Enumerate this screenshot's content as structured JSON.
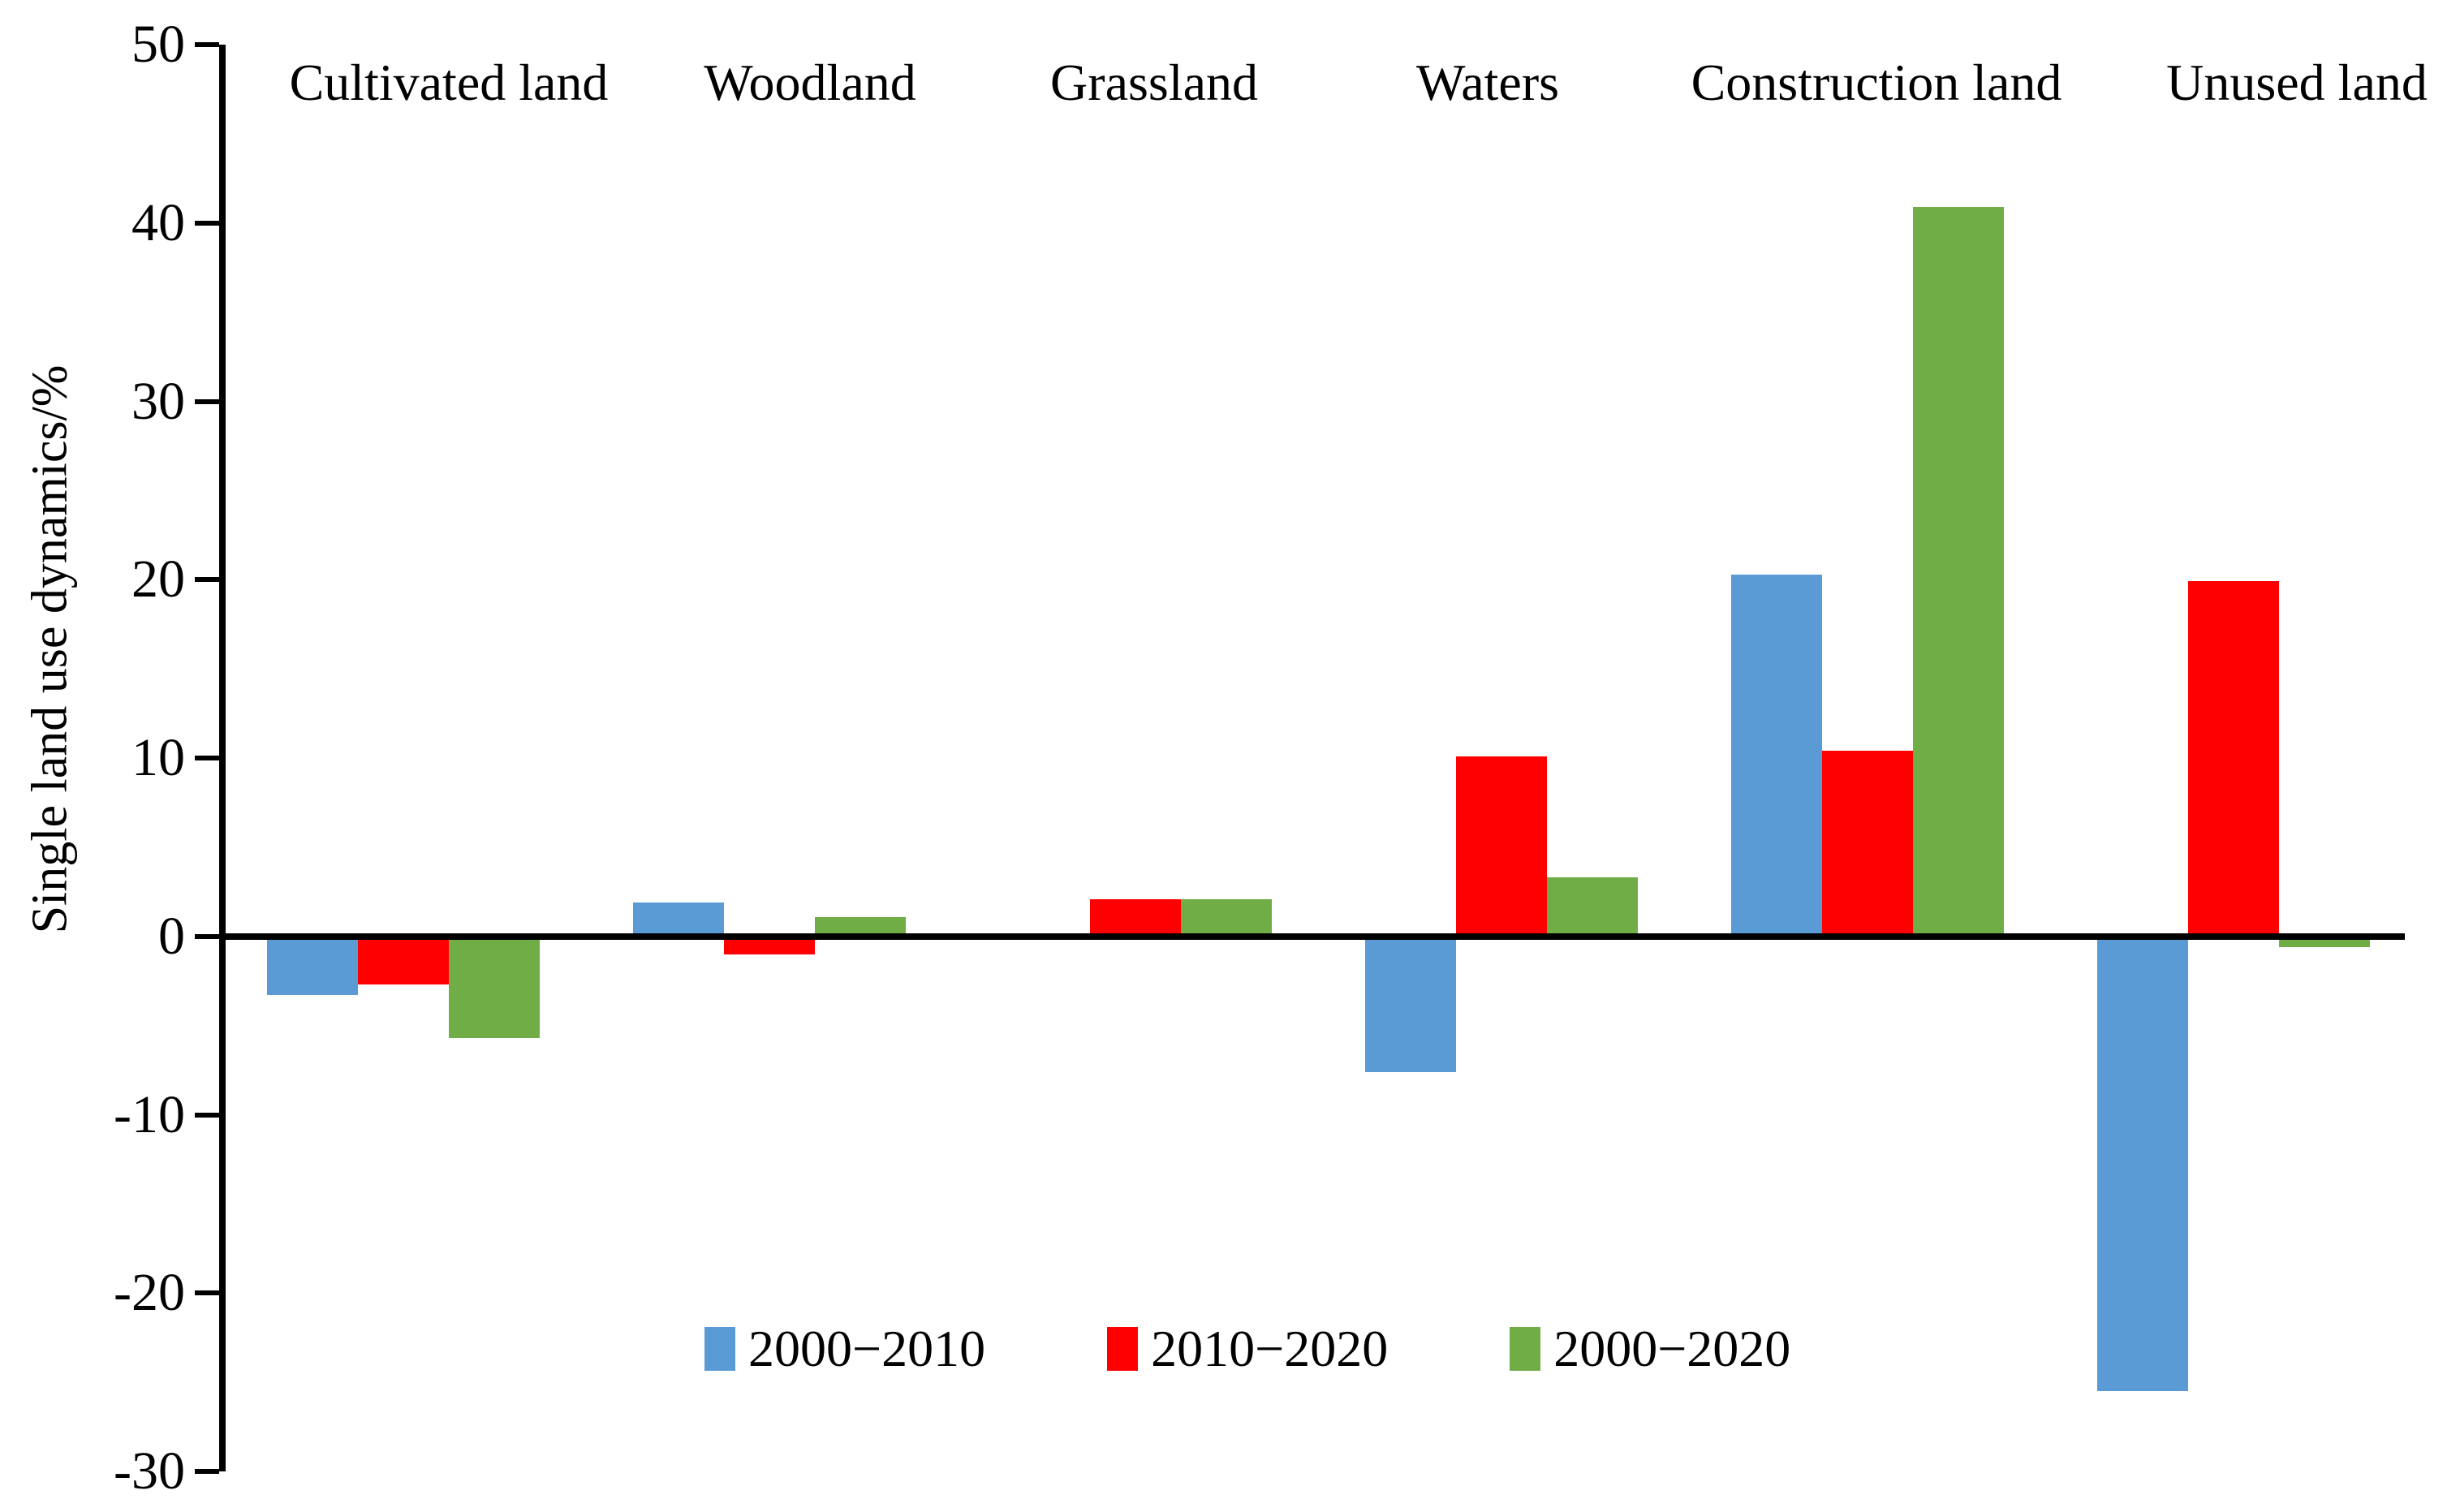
{
  "figure": {
    "background": "#ffffff",
    "axis_color": "#000000"
  },
  "chart_data": {
    "type": "bar",
    "title": "",
    "xlabel": "",
    "ylabel": "Single land use dynamics/%",
    "ylim": [
      -30,
      50
    ],
    "ytick_interval": 10,
    "yticks": [
      50,
      40,
      30,
      20,
      10,
      0,
      -10,
      -20,
      -30
    ],
    "ytick_labels": [
      "50",
      "40",
      "30",
      "20",
      "10",
      "0",
      "-10",
      "-20",
      "-30"
    ],
    "grid": false,
    "legend_position": "bottom-center-inside",
    "category_labels_position": "top-inside",
    "categories": [
      "Cultivated land",
      "Woodland",
      "Grassland",
      "Waters",
      "Construction land",
      "Unused land"
    ],
    "series": [
      {
        "name": "2000−2010",
        "color": "#5B9BD5",
        "values": [
          -3.3,
          1.9,
          -0.2,
          -7.6,
          20.3,
          -25.5
        ]
      },
      {
        "name": "2010−2020",
        "color": "#FF0000",
        "values": [
          -2.7,
          -1.0,
          2.1,
          10.1,
          10.4,
          19.9
        ]
      },
      {
        "name": "2000−2020",
        "color": "#70AD47",
        "values": [
          -5.7,
          1.1,
          2.1,
          3.3,
          40.9,
          -0.6
        ]
      }
    ]
  }
}
